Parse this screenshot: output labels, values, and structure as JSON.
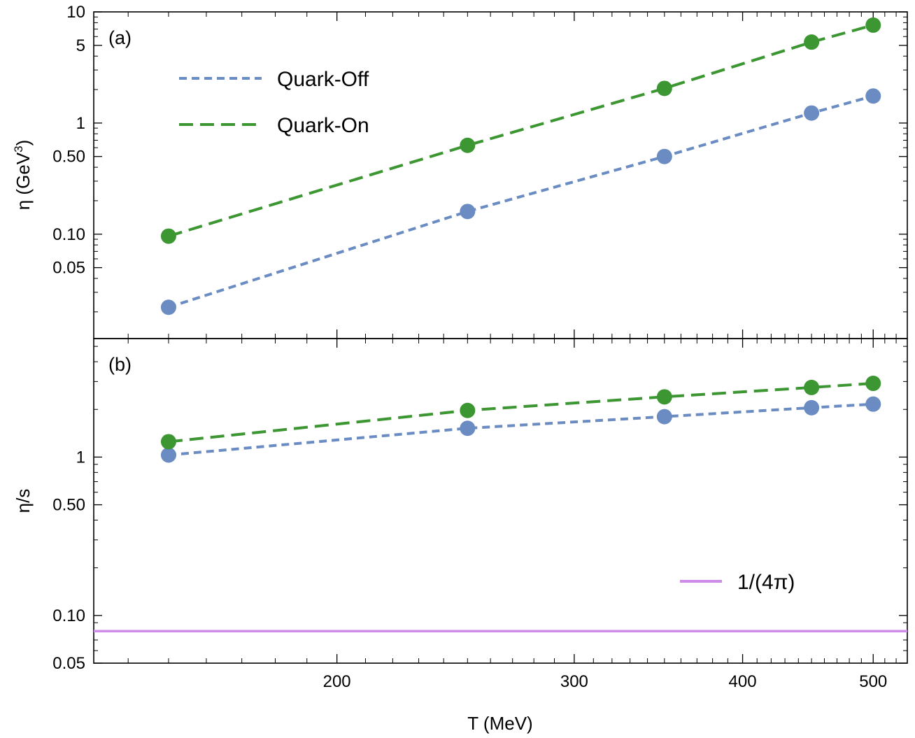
{
  "colors": {
    "quark_off": "#6a8cc2",
    "quark_on": "#3c9632",
    "reference": "#cf8be8"
  },
  "chart_data": [
    {
      "type": "line",
      "panel_label": "(a)",
      "x_scale": "log",
      "y_scale": "log",
      "x": [
        150,
        250,
        350,
        450,
        500
      ],
      "series": [
        {
          "name": "Quark-Off",
          "values": [
            0.022,
            0.16,
            0.5,
            1.23,
            1.75
          ],
          "style": "dotted",
          "markers": true
        },
        {
          "name": "Quark-On",
          "values": [
            0.096,
            0.63,
            2.05,
            5.35,
            7.6
          ],
          "style": "dashed",
          "markers": true
        }
      ],
      "ylabel": "η (GeV",
      "ylabel_superscript": "3",
      "ylabel_close": ")",
      "ylim": [
        0.0115,
        10
      ],
      "xlim": [
        132,
        530
      ],
      "y_ticks": [
        {
          "value": 0.05,
          "label": "0.05"
        },
        {
          "value": 0.1,
          "label": "0.10"
        },
        {
          "value": 0.5,
          "label": "0.50"
        },
        {
          "value": 1,
          "label": "1"
        },
        {
          "value": 5,
          "label": "5"
        },
        {
          "value": 10,
          "label": "10"
        }
      ],
      "legend_placement": "top-left"
    },
    {
      "type": "line",
      "panel_label": "(b)",
      "x_scale": "log",
      "y_scale": "log",
      "x": [
        150,
        250,
        350,
        450,
        500
      ],
      "series": [
        {
          "name": "Quark-Off",
          "values": [
            1.03,
            1.52,
            1.8,
            2.05,
            2.16
          ],
          "style": "dotted",
          "markers": true
        },
        {
          "name": "Quark-On",
          "values": [
            1.25,
            1.97,
            2.4,
            2.75,
            2.92
          ],
          "style": "dashed",
          "markers": true
        }
      ],
      "reference_line": {
        "label": "1/(4π)",
        "value": 0.0796
      },
      "xlabel": "T (MeV)",
      "ylabel": "η/s",
      "ylim": [
        0.05,
        5.6
      ],
      "xlim": [
        132,
        530
      ],
      "y_ticks": [
        {
          "value": 0.05,
          "label": "0.05"
        },
        {
          "value": 0.1,
          "label": "0.10"
        },
        {
          "value": 0.5,
          "label": "0.50"
        },
        {
          "value": 1,
          "label": "1"
        }
      ],
      "x_ticks": [
        {
          "value": 200,
          "label": "200"
        },
        {
          "value": 300,
          "label": "300"
        },
        {
          "value": 400,
          "label": "400"
        },
        {
          "value": 500,
          "label": "500"
        }
      ],
      "legend_placement": "bottom-right"
    }
  ]
}
